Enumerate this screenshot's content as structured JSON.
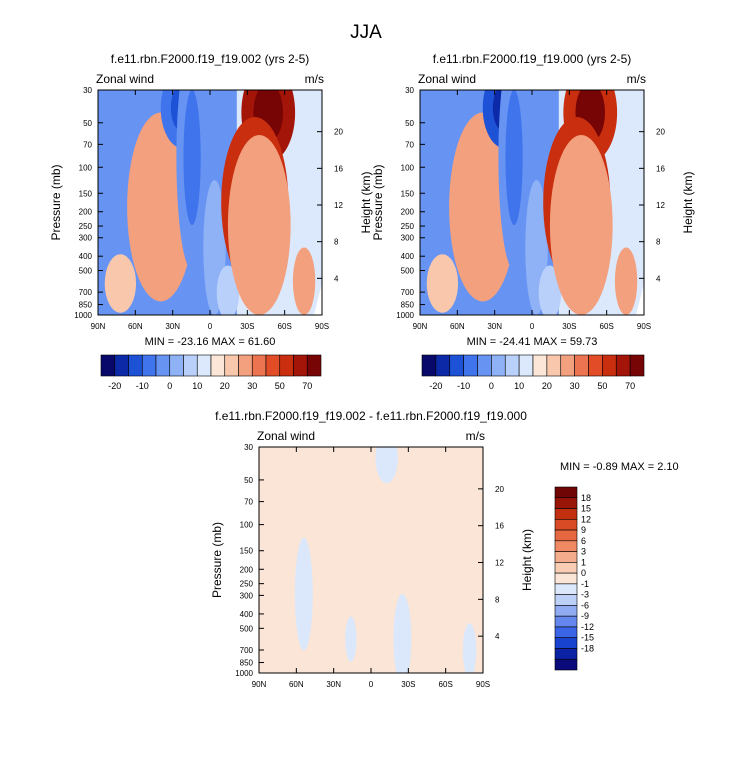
{
  "figure": {
    "title": "JJA"
  },
  "palettes": {
    "full": [
      "#08086b",
      "#0c2aa8",
      "#1e52d6",
      "#3f74ec",
      "#6794f2",
      "#8fb2f6",
      "#b9d0fa",
      "#dce9fd",
      "#fbe6d8",
      "#f8c7ac",
      "#f3a07e",
      "#ec7450",
      "#e24d28",
      "#c92e0e",
      "#a21508",
      "#780505"
    ],
    "diff": [
      "#0a0a7a",
      "#0b22a5",
      "#1842d0",
      "#3a65e6",
      "#6487ed",
      "#90abf2",
      "#bcd0f8",
      "#dbe8fc",
      "#fbe5d6",
      "#f8cdb4",
      "#f4ad8c",
      "#ef8a64",
      "#e66840",
      "#d84b24",
      "#c2300f",
      "#991508",
      "#700505"
    ]
  },
  "chart_data": [
    {
      "type": "contour",
      "title": "f.e11.rbn.F2000.f19_f19.002 (yrs 2-5)",
      "left_label": "Zonal wind",
      "right_label": "m/s",
      "ylabel": "Pressure (mb)",
      "ylabel_right": "Height (km)",
      "x_ticks": [
        "90N",
        "60N",
        "30N",
        "0",
        "30S",
        "60S",
        "90S"
      ],
      "y_ticks": [
        30,
        50,
        70,
        100,
        150,
        200,
        250,
        300,
        400,
        500,
        700,
        850,
        1000
      ],
      "y2_ticks": [
        20,
        16,
        12,
        8,
        4
      ],
      "ylim": [
        30,
        1000
      ],
      "stats": "MIN = -23.16  MAX =  61.60",
      "colorbar_labels": [
        "-20",
        "-10",
        "0",
        "10",
        "20",
        "30",
        "50",
        "70"
      ],
      "field": [
        {
          "lat": 0.1,
          "p": 0.86,
          "rx": 0.07,
          "ry": 0.13,
          "v": 1.2
        },
        {
          "lat": 0.28,
          "p": 0.52,
          "rx": 0.15,
          "ry": 0.42,
          "v": 1.5
        },
        {
          "lat": 0.25,
          "p": 0.52,
          "rx": 0.085,
          "ry": 0.26,
          "v": 2.2
        },
        {
          "lat": 0.25,
          "p": 0.52,
          "rx": 0.04,
          "ry": 0.12,
          "v": 2.0
        },
        {
          "lat": 0.38,
          "p": 0.08,
          "rx": 0.1,
          "ry": 0.18,
          "v": -4.5
        },
        {
          "lat": 0.42,
          "p": 0.3,
          "rx": 0.07,
          "ry": 0.5,
          "v": -2.8
        },
        {
          "lat": 0.52,
          "p": 0.7,
          "rx": 0.05,
          "ry": 0.3,
          "v": -1.8
        },
        {
          "lat": 0.58,
          "p": 0.9,
          "rx": 0.05,
          "ry": 0.12,
          "v": -1.2
        },
        {
          "lat": 0.76,
          "p": 0.1,
          "rx": 0.12,
          "ry": 0.22,
          "v": 5.6
        },
        {
          "lat": 0.7,
          "p": 0.5,
          "rx": 0.15,
          "ry": 0.38,
          "v": 5.4
        },
        {
          "lat": 0.72,
          "p": 0.6,
          "rx": 0.14,
          "ry": 0.4,
          "v": 1.8
        },
        {
          "lat": 0.92,
          "p": 0.85,
          "rx": 0.05,
          "ry": 0.15,
          "v": 1.5
        }
      ]
    },
    {
      "type": "contour",
      "title": "f.e11.rbn.F2000.f19_f19.000 (yrs 2-5)",
      "left_label": "Zonal wind",
      "right_label": "m/s",
      "ylabel": "Pressure (mb)",
      "ylabel_right": "Height (km)",
      "x_ticks": [
        "90N",
        "60N",
        "30N",
        "0",
        "30S",
        "60S",
        "90S"
      ],
      "y_ticks": [
        30,
        50,
        70,
        100,
        150,
        200,
        250,
        300,
        400,
        500,
        700,
        850,
        1000
      ],
      "y2_ticks": [
        20,
        16,
        12,
        8,
        4
      ],
      "ylim": [
        30,
        1000
      ],
      "stats": "MIN = -24.41  MAX =  59.73",
      "colorbar_labels": [
        "-20",
        "-10",
        "0",
        "10",
        "20",
        "30",
        "50",
        "70"
      ],
      "field": [
        {
          "lat": 0.1,
          "p": 0.86,
          "rx": 0.07,
          "ry": 0.13,
          "v": 1.2
        },
        {
          "lat": 0.28,
          "p": 0.52,
          "rx": 0.15,
          "ry": 0.42,
          "v": 1.5
        },
        {
          "lat": 0.25,
          "p": 0.52,
          "rx": 0.085,
          "ry": 0.26,
          "v": 2.2
        },
        {
          "lat": 0.25,
          "p": 0.52,
          "rx": 0.04,
          "ry": 0.12,
          "v": 2.0
        },
        {
          "lat": 0.38,
          "p": 0.08,
          "rx": 0.1,
          "ry": 0.18,
          "v": -4.7
        },
        {
          "lat": 0.42,
          "p": 0.3,
          "rx": 0.07,
          "ry": 0.5,
          "v": -2.8
        },
        {
          "lat": 0.52,
          "p": 0.7,
          "rx": 0.05,
          "ry": 0.3,
          "v": -1.8
        },
        {
          "lat": 0.58,
          "p": 0.9,
          "rx": 0.05,
          "ry": 0.12,
          "v": -1.2
        },
        {
          "lat": 0.76,
          "p": 0.1,
          "rx": 0.12,
          "ry": 0.22,
          "v": 5.4
        },
        {
          "lat": 0.7,
          "p": 0.5,
          "rx": 0.15,
          "ry": 0.38,
          "v": 5.3
        },
        {
          "lat": 0.72,
          "p": 0.6,
          "rx": 0.14,
          "ry": 0.4,
          "v": 1.8
        },
        {
          "lat": 0.92,
          "p": 0.85,
          "rx": 0.05,
          "ry": 0.15,
          "v": 1.5
        }
      ]
    },
    {
      "type": "contour",
      "title": "f.e11.rbn.F2000.f19_f19.002 - f.e11.rbn.F2000.f19_f19.000",
      "left_label": "Zonal wind",
      "right_label": "m/s",
      "ylabel": "Pressure (mb)",
      "ylabel_right": "Height (km)",
      "x_ticks": [
        "90N",
        "60N",
        "30N",
        "0",
        "30S",
        "60S",
        "90S"
      ],
      "y_ticks": [
        30,
        50,
        70,
        100,
        150,
        200,
        250,
        300,
        400,
        500,
        700,
        850,
        1000
      ],
      "y2_ticks": [
        20,
        16,
        12,
        8,
        4
      ],
      "ylim": [
        30,
        1000
      ],
      "stats": "MIN = -0.89  MAX =  2.10",
      "colorbar_labels": [
        "18",
        "15",
        "12",
        "9",
        "6",
        "3",
        "1",
        "0",
        "-1",
        "-3",
        "-6",
        "-9",
        "-12",
        "-15",
        "-18"
      ],
      "field": [
        {
          "lat": 0.08,
          "p": 0.62,
          "rx": 0.05,
          "ry": 0.38,
          "v": 1.0
        },
        {
          "lat": 0.35,
          "p": 0.1,
          "rx": 0.11,
          "ry": 0.14,
          "v": 1.0
        },
        {
          "lat": 0.47,
          "p": 0.46,
          "rx": 0.04,
          "ry": 0.14,
          "v": 1.0
        },
        {
          "lat": 0.76,
          "p": 0.12,
          "rx": 0.09,
          "ry": 0.24,
          "v": 1.0
        },
        {
          "lat": 0.92,
          "p": 0.4,
          "rx": 0.05,
          "ry": 0.25,
          "v": 1.0
        },
        {
          "lat": 0.57,
          "p": 0.05,
          "rx": 0.05,
          "ry": 0.11,
          "v": -1.0
        },
        {
          "lat": 0.2,
          "p": 0.65,
          "rx": 0.04,
          "ry": 0.25,
          "v": -1.0
        },
        {
          "lat": 0.41,
          "p": 0.85,
          "rx": 0.025,
          "ry": 0.1,
          "v": -1.0
        },
        {
          "lat": 0.64,
          "p": 0.85,
          "rx": 0.04,
          "ry": 0.2,
          "v": -1.0
        },
        {
          "lat": 0.94,
          "p": 0.9,
          "rx": 0.03,
          "ry": 0.12,
          "v": -1.0
        }
      ]
    }
  ]
}
